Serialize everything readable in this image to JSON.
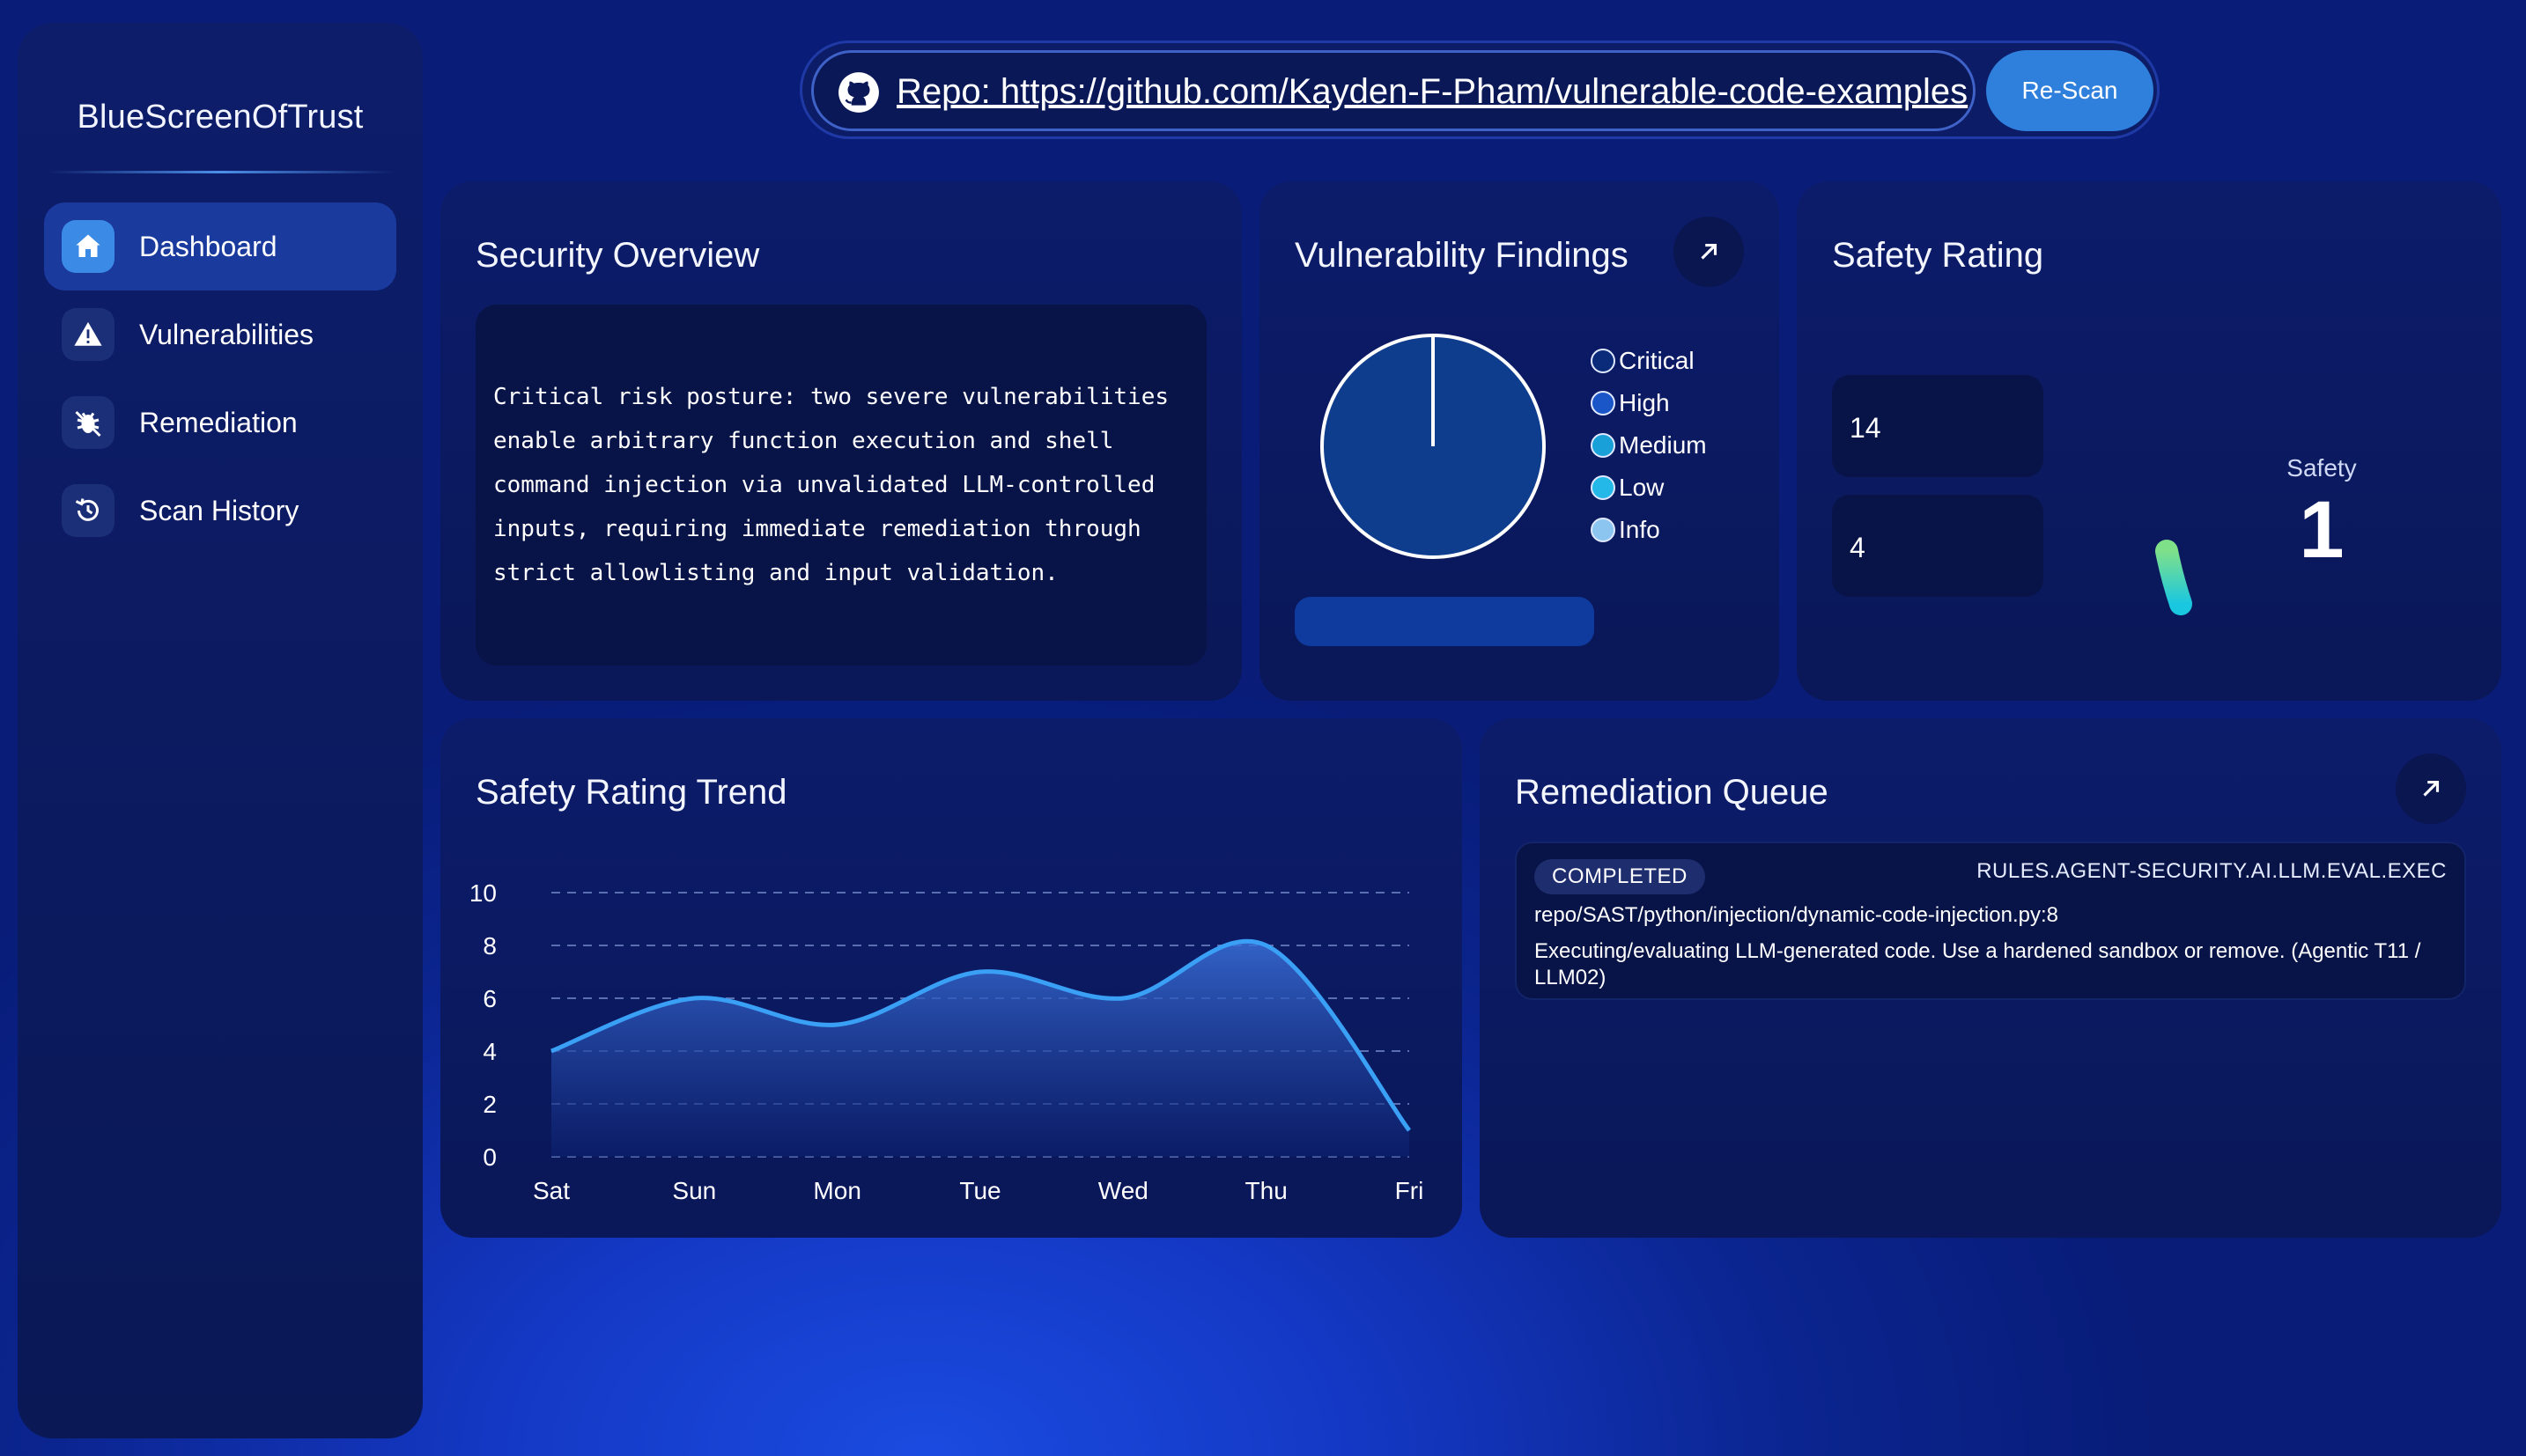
{
  "app": {
    "brand": "BlueScreenOfTrust"
  },
  "sidebar": {
    "items": [
      {
        "label": "Dashboard",
        "icon": "home-icon",
        "active": true
      },
      {
        "label": "Vulnerabilities",
        "icon": "warning-icon",
        "active": false
      },
      {
        "label": "Remediation",
        "icon": "bug-icon",
        "active": false
      },
      {
        "label": "Scan History",
        "icon": "history-icon",
        "active": false
      }
    ]
  },
  "header": {
    "repo_text": "Repo: https://github.com/Kayden-F-Pham/vulnerable-code-examples",
    "repo_icon": "github-icon",
    "rescan_label": "Re-Scan"
  },
  "overview": {
    "title": "Security Overview",
    "text": "Critical risk posture: two severe vulnerabilities enable arbitrary function execution and shell command injection via unvalidated LLM-controlled inputs, requiring immediate remediation through strict allowlisting and input validation."
  },
  "findings": {
    "title": "Vulnerability Findings",
    "legend": [
      {
        "label": "Critical",
        "color": "#0a2a7a"
      },
      {
        "label": "High",
        "color": "#1a56c8"
      },
      {
        "label": "Medium",
        "color": "#1aa0d8"
      },
      {
        "label": "Low",
        "color": "#24b8e8"
      },
      {
        "label": "Info",
        "color": "#8cc6f0"
      }
    ],
    "pie_color": "#0f3d8e"
  },
  "safety": {
    "title": "Safety Rating",
    "stat_1": "14",
    "stat_2": "4",
    "label": "Safety",
    "value": "1",
    "gauge_fraction": 0.1
  },
  "trend": {
    "title": "Safety Rating Trend"
  },
  "queue": {
    "title": "Remediation Queue",
    "items": [
      {
        "status": "COMPLETED",
        "rule": "RULES.AGENT-SECURITY.AI.LLM.EVAL.EXEC",
        "path": "repo/SAST/python/injection/dynamic-code-injection.py:8",
        "description": "Executing/evaluating LLM-generated code. Use a hardened sandbox or remove. (Agentic T11 / LLM02)"
      }
    ]
  },
  "chart_data": {
    "type": "area",
    "categories": [
      "Sat",
      "Sun",
      "Mon",
      "Tue",
      "Wed",
      "Thu",
      "Fri"
    ],
    "values": [
      4,
      6,
      5,
      7,
      6,
      8,
      1
    ],
    "ylim": [
      0,
      10
    ],
    "yticks": [
      "0",
      "2",
      "4",
      "6",
      "8",
      "10"
    ],
    "grid": true,
    "line_color": "#3aa0f5"
  }
}
